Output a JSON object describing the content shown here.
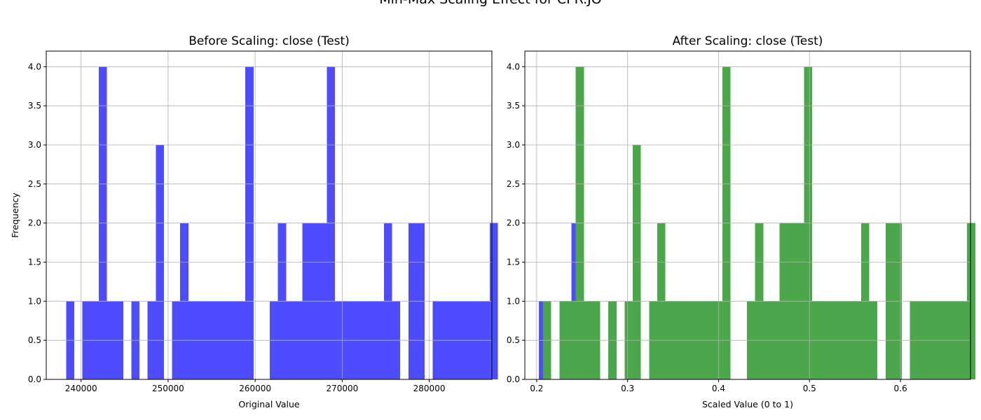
{
  "suptitle": "Min-Max Scaling Effect for CPR.JO",
  "chart_data": [
    {
      "type": "bar",
      "title": "Before Scaling: close (Test)",
      "xlabel": "Original Value",
      "ylabel": "Frequency",
      "color": "#4d4dff",
      "xlim": [
        236000,
        287200
      ],
      "ylim": [
        0,
        4.2
      ],
      "xticks": [
        240000,
        250000,
        260000,
        270000,
        280000
      ],
      "xtick_labels": [
        "240000",
        "250000",
        "260000",
        "270000",
        "280000"
      ],
      "yticks": [
        0,
        0.5,
        1,
        1.5,
        2,
        2.5,
        3,
        3.5,
        4
      ],
      "ytick_labels": [
        "0.0",
        "0.5",
        "1.0",
        "1.5",
        "2.0",
        "2.5",
        "3.0",
        "3.5",
        "4.0"
      ],
      "grid": true,
      "bin_start": 238290,
      "bin_width": 936,
      "counts": [
        1,
        0,
        1,
        1,
        4,
        1,
        1,
        0,
        1,
        0,
        1,
        3,
        0,
        1,
        2,
        1,
        1,
        1,
        1,
        1,
        1,
        1,
        4,
        0,
        0,
        1,
        2,
        1,
        1,
        2,
        2,
        2,
        4,
        1,
        1,
        1,
        1,
        1,
        1,
        2,
        1,
        0,
        2,
        2,
        0,
        1,
        1,
        1,
        1,
        1,
        1,
        1,
        2,
        0,
        0,
        0,
        0,
        0,
        1,
        0,
        0,
        0,
        2
      ]
    },
    {
      "type": "bar",
      "title": "After Scaling: close (Test)",
      "xlabel": "Scaled Value (0 to 1)",
      "ylabel": "",
      "color": "#4ca64c",
      "xlim": [
        0.187,
        0.677
      ],
      "ylim": [
        0,
        4.2
      ],
      "xticks": [
        0.2,
        0.3,
        0.4,
        0.5,
        0.6
      ],
      "xtick_labels": [
        "0.2",
        "0.3",
        "0.4",
        "0.5",
        "0.6"
      ],
      "yticks": [
        0,
        0.5,
        1,
        1.5,
        2,
        2.5,
        3,
        3.5,
        4
      ],
      "ytick_labels": [
        "0.0",
        "0.5",
        "1.0",
        "1.5",
        "2.0",
        "2.5",
        "3.0",
        "3.5",
        "4.0"
      ],
      "grid": true,
      "bin_start": 0.2071,
      "bin_width": 0.008965,
      "counts": [
        1,
        0,
        1,
        1,
        4,
        1,
        1,
        0,
        1,
        0,
        1,
        3,
        0,
        1,
        2,
        1,
        1,
        1,
        1,
        1,
        1,
        1,
        4,
        0,
        0,
        1,
        2,
        1,
        1,
        2,
        2,
        2,
        4,
        1,
        1,
        1,
        1,
        1,
        1,
        2,
        1,
        0,
        2,
        2,
        0,
        1,
        1,
        1,
        1,
        1,
        1,
        1,
        2,
        0,
        0,
        0,
        0,
        0,
        1,
        0,
        0,
        0,
        2
      ]
    }
  ]
}
